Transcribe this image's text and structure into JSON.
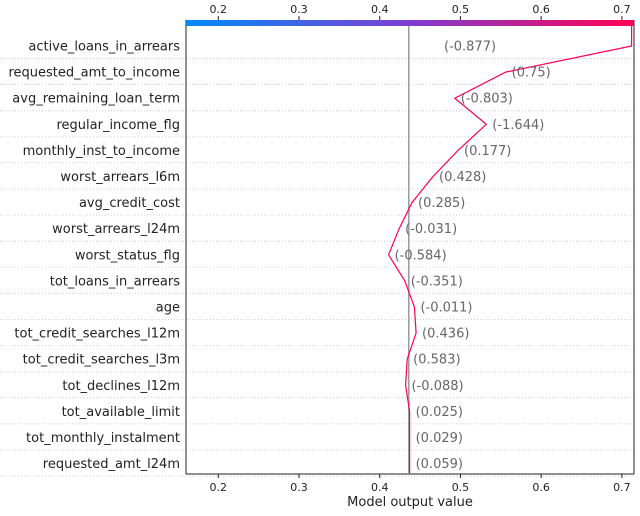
{
  "chart_data": {
    "type": "decision",
    "xlabel": "Model output value",
    "xlim": [
      0.16,
      0.715
    ],
    "x_ticks": [
      "0.2",
      "0.3",
      "0.4",
      "0.5",
      "0.6",
      "0.7"
    ],
    "base_value": 0.436,
    "colorbar": {
      "from": "#008bfb",
      "via": "#7e3ed1",
      "to": "#ff0052"
    },
    "line_color": "#ff0052",
    "features": [
      {
        "name": "active_loans_in_arrears",
        "value_label": "(-0.877)",
        "x": 0.712
      },
      {
        "name": "requested_amt_to_income",
        "value_label": "(0.75)",
        "x": 0.556
      },
      {
        "name": "avg_remaining_loan_term",
        "value_label": "(-0.803)",
        "x": 0.493
      },
      {
        "name": "regular_income_flg",
        "value_label": "(-1.644)",
        "x": 0.532
      },
      {
        "name": "monthly_inst_to_income",
        "value_label": "(0.177)",
        "x": 0.497
      },
      {
        "name": "worst_arrears_l6m",
        "value_label": "(0.428)",
        "x": 0.466
      },
      {
        "name": "avg_credit_cost",
        "value_label": "(0.285)",
        "x": 0.44
      },
      {
        "name": "worst_arrears_l24m",
        "value_label": "(-0.031)",
        "x": 0.424
      },
      {
        "name": "worst_status_flg",
        "value_label": "(-0.584)",
        "x": 0.411
      },
      {
        "name": "tot_loans_in_arrears",
        "value_label": "(-0.351)",
        "x": 0.431
      },
      {
        "name": "age",
        "value_label": "(-0.011)",
        "x": 0.443
      },
      {
        "name": "tot_credit_searches_l12m",
        "value_label": "(0.436)",
        "x": 0.445
      },
      {
        "name": "tot_credit_searches_l3m",
        "value_label": "(0.583)",
        "x": 0.434
      },
      {
        "name": "tot_declines_l12m",
        "value_label": "(-0.088)",
        "x": 0.432
      },
      {
        "name": "tot_available_limit",
        "value_label": "(0.025)",
        "x": 0.437
      },
      {
        "name": "tot_monthly_instalment",
        "value_label": "(0.029)",
        "x": 0.437
      },
      {
        "name": "requested_amt_l24m",
        "value_label": "(0.059)",
        "x": 0.437
      }
    ],
    "start_value": 0.437
  }
}
